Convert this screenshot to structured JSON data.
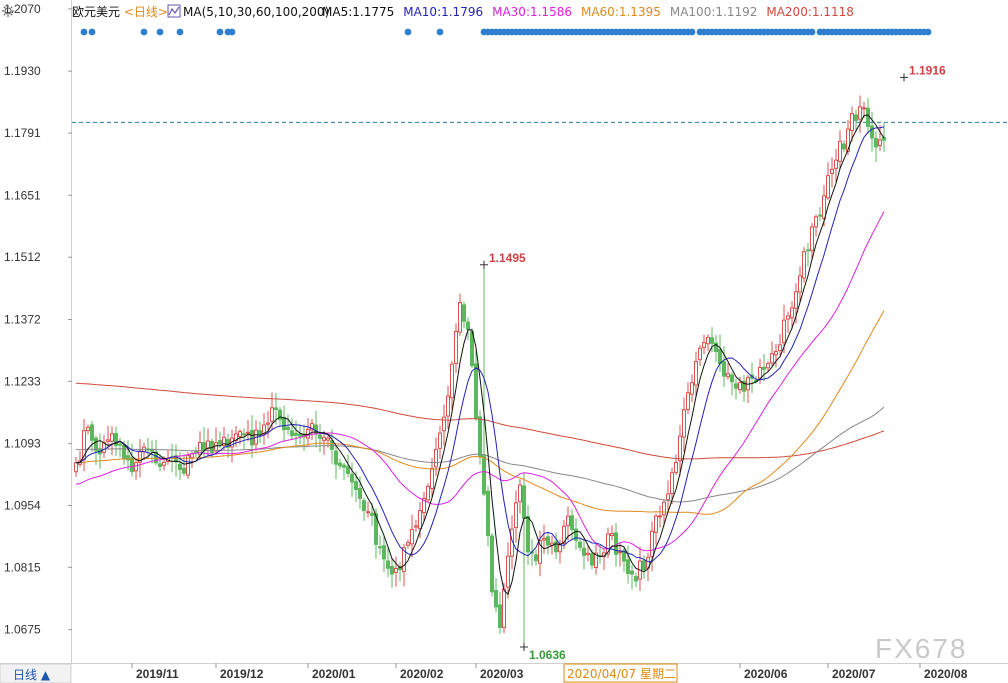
{
  "header": {
    "symbol": "欧元美元",
    "period": "<日线>",
    "ma_label": "MA(5,10,30,60,100,200)",
    "ma_values": [
      {
        "text": "MA5:1.1775",
        "color": "#111111"
      },
      {
        "text": "MA10:1.1796",
        "color": "#2222bb"
      },
      {
        "text": "MA30:1.1586",
        "color": "#e020e0"
      },
      {
        "text": "MA60:1.1395",
        "color": "#e08a1e"
      },
      {
        "text": "MA100:1.1192",
        "color": "#888888"
      },
      {
        "text": "MA200:1.1118",
        "color": "#d04a3a"
      }
    ]
  },
  "footer": {
    "period_button": "日线 ▲",
    "cursor_label": "2020/04/07 星期二",
    "watermark": "FX678"
  },
  "colors": {
    "up": "#d9534f",
    "down": "#5cb85c",
    "dots": "#2e7fd0",
    "ref_line": "#2a7fb0"
  },
  "chart_data": {
    "type": "candlestick",
    "y_ticks": [
      1.207,
      1.193,
      1.1791,
      1.1651,
      1.1512,
      1.1372,
      1.1233,
      1.1093,
      1.0954,
      1.0815,
      1.0675
    ],
    "ylim": [
      1.06,
      1.209
    ],
    "x_ticks": [
      {
        "label": "2019/11",
        "day": 14
      },
      {
        "label": "2019/12",
        "day": 35
      },
      {
        "label": "2020/01",
        "day": 58
      },
      {
        "label": "2020/02",
        "day": 80
      },
      {
        "label": "2020/03",
        "day": 100
      },
      {
        "label": "2020/06",
        "day": 166
      },
      {
        "label": "2020/07",
        "day": 188
      },
      {
        "label": "2020/08",
        "day": 211
      }
    ],
    "reference_line": 1.1815,
    "high_annotation": {
      "label": "1.1916",
      "day": 207,
      "value": 1.1916
    },
    "annotations": [
      {
        "label": "1.1495",
        "day": 102,
        "value": 1.1495,
        "color": "#d04040"
      },
      {
        "label": "1.0636",
        "day": 112,
        "value": 1.0636,
        "color": "#3a9a3a"
      }
    ],
    "dot_days": [
      2,
      4,
      17,
      21,
      26,
      36,
      38,
      39,
      83,
      91,
      102,
      103,
      104,
      105,
      106,
      107,
      108,
      109,
      110,
      111,
      112,
      113,
      114,
      115,
      116,
      117,
      118,
      119,
      120,
      121,
      122,
      123,
      124,
      125,
      126,
      127,
      128,
      129,
      130,
      131,
      132,
      133,
      134,
      135,
      136,
      137,
      138,
      139,
      140,
      141,
      142,
      143,
      144,
      145,
      146,
      147,
      148,
      149,
      150,
      151,
      152,
      153,
      154,
      156,
      157,
      158,
      159,
      160,
      161,
      162,
      163,
      164,
      165,
      166,
      167,
      168,
      169,
      170,
      171,
      172,
      173,
      174,
      175,
      176,
      177,
      178,
      179,
      180,
      181,
      182,
      183,
      184,
      186,
      187,
      188,
      189,
      190,
      191,
      192,
      193,
      194,
      195,
      196,
      197,
      198,
      199,
      200,
      201,
      202,
      203,
      204,
      205,
      206,
      207,
      208,
      209,
      210,
      211,
      212,
      213
    ],
    "close_anchors": [
      [
        0,
        1.105
      ],
      [
        3,
        1.113
      ],
      [
        6,
        1.107
      ],
      [
        9,
        1.1115
      ],
      [
        12,
        1.106
      ],
      [
        14,
        1.103
      ],
      [
        17,
        1.1085
      ],
      [
        20,
        1.105
      ],
      [
        23,
        1.106
      ],
      [
        26,
        1.1035
      ],
      [
        29,
        1.107
      ],
      [
        32,
        1.108
      ],
      [
        35,
        1.1095
      ],
      [
        38,
        1.1085
      ],
      [
        41,
        1.112
      ],
      [
        44,
        1.109
      ],
      [
        47,
        1.1135
      ],
      [
        50,
        1.117
      ],
      [
        53,
        1.1125
      ],
      [
        56,
        1.111
      ],
      [
        58,
        1.1125
      ],
      [
        61,
        1.1105
      ],
      [
        64,
        1.108
      ],
      [
        67,
        1.104
      ],
      [
        70,
        1.099
      ],
      [
        73,
        1.094
      ],
      [
        76,
        1.086
      ],
      [
        79,
        1.08
      ],
      [
        81,
        1.081
      ],
      [
        84,
        1.09
      ],
      [
        87,
        1.097
      ],
      [
        90,
        1.108
      ],
      [
        93,
        1.12
      ],
      [
        96,
        1.141
      ],
      [
        98,
        1.135
      ],
      [
        100,
        1.115
      ],
      [
        102,
        1.098
      ],
      [
        104,
        1.076
      ],
      [
        106,
        1.068
      ],
      [
        108,
        1.084
      ],
      [
        110,
        1.096
      ],
      [
        111,
        1.1
      ],
      [
        113,
        1.085
      ],
      [
        115,
        1.083
      ],
      [
        117,
        1.088
      ],
      [
        120,
        1.085
      ],
      [
        123,
        1.093
      ],
      [
        126,
        1.086
      ],
      [
        129,
        1.082
      ],
      [
        131,
        1.084
      ],
      [
        133,
        1.089
      ],
      [
        136,
        1.085
      ],
      [
        139,
        1.08
      ],
      [
        142,
        1.081
      ],
      [
        145,
        1.093
      ],
      [
        148,
        1.098
      ],
      [
        151,
        1.111
      ],
      [
        154,
        1.123
      ],
      [
        157,
        1.132
      ],
      [
        160,
        1.13
      ],
      [
        163,
        1.125
      ],
      [
        166,
        1.123
      ],
      [
        169,
        1.124
      ],
      [
        172,
        1.126
      ],
      [
        175,
        1.13
      ],
      [
        178,
        1.138
      ],
      [
        181,
        1.147
      ],
      [
        184,
        1.158
      ],
      [
        187,
        1.165
      ],
      [
        190,
        1.173
      ],
      [
        193,
        1.18
      ],
      [
        196,
        1.185
      ],
      [
        199,
        1.178
      ],
      [
        200,
        1.176
      ],
      [
        202,
        1.1775
      ]
    ]
  }
}
